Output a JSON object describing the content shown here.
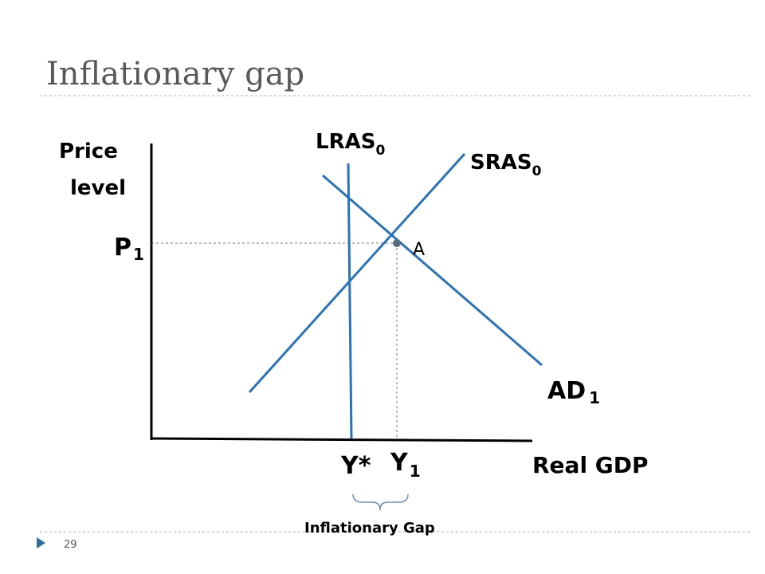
{
  "title": "Inflationary gap",
  "axis_labels": {
    "y": [
      "Price",
      "level"
    ],
    "x": "Real GDP"
  },
  "curves": {
    "lras": {
      "text": "LRAS",
      "sub": "0"
    },
    "sras": {
      "text": "SRAS",
      "sub": "0"
    },
    "ad": {
      "text": "AD",
      "sub": "1"
    }
  },
  "points": {
    "a": "A"
  },
  "price_label": {
    "text": "P",
    "sub": "1"
  },
  "output_labels": {
    "potential": "Y*",
    "actual": {
      "text": "Y",
      "sub": "1"
    }
  },
  "gap_label": "Inflationary Gap",
  "page_number": "29"
}
